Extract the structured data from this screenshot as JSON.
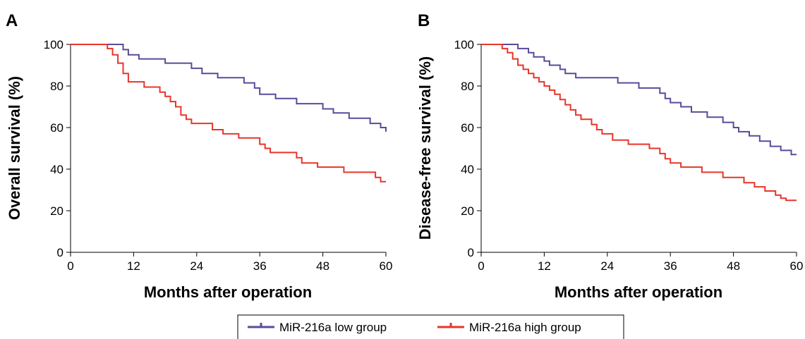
{
  "legend": {
    "entries": [
      {
        "label": "MiR-216a low group",
        "color": "#5b4a9a"
      },
      {
        "label": "MiR-216a high group",
        "color": "#e8352a"
      }
    ]
  },
  "chart_data": [
    {
      "type": "line",
      "step": true,
      "panel_label": "A",
      "xlabel": "Months after operation",
      "ylabel": "Overall survival (%)",
      "xlim": [
        0,
        60
      ],
      "ylim": [
        0,
        100
      ],
      "xticks": [
        "0",
        "12",
        "24",
        "36",
        "48",
        "60"
      ],
      "yticks": [
        "0",
        "20",
        "40",
        "60",
        "80",
        "100"
      ],
      "grid": false,
      "legend": "bottom-center",
      "series": [
        {
          "name": "MiR-216a low group",
          "color": "#5b4a9a",
          "x": [
            0,
            10,
            11,
            13,
            18,
            23,
            25,
            28,
            33,
            35,
            36,
            39,
            43,
            48,
            50,
            53,
            57,
            59,
            60
          ],
          "y": [
            100,
            97.5,
            95,
            93,
            91,
            88.5,
            86,
            84,
            81.5,
            79,
            76,
            74,
            71.5,
            69,
            67,
            64.5,
            62,
            60,
            58
          ]
        },
        {
          "name": "MiR-216a high group",
          "color": "#e8352a",
          "x": [
            0,
            7,
            8,
            9,
            10,
            11,
            14,
            17,
            18,
            19,
            20,
            21,
            22,
            23,
            27,
            29,
            32,
            36,
            37,
            38,
            43,
            44,
            47,
            52,
            58,
            59,
            60
          ],
          "y": [
            100,
            98,
            95,
            91,
            86,
            82,
            79.5,
            77,
            75,
            72.5,
            70,
            66,
            64,
            62,
            59,
            57,
            55,
            52,
            50,
            48,
            45.5,
            43,
            41,
            38.5,
            36,
            34,
            34
          ]
        }
      ]
    },
    {
      "type": "line",
      "step": true,
      "panel_label": "B",
      "xlabel": "Months after operation",
      "ylabel": "Disease-free survival (%)",
      "xlim": [
        0,
        60
      ],
      "ylim": [
        0,
        100
      ],
      "xticks": [
        "0",
        "12",
        "24",
        "36",
        "48",
        "60"
      ],
      "yticks": [
        "0",
        "20",
        "40",
        "60",
        "80",
        "100"
      ],
      "grid": false,
      "legend": "bottom-center",
      "series": [
        {
          "name": "MiR-216a low group",
          "color": "#5b4a9a",
          "x": [
            0,
            7,
            9,
            10,
            12,
            13,
            15,
            16,
            18,
            26,
            30,
            34,
            35,
            36,
            38,
            40,
            43,
            46,
            48,
            49,
            51,
            53,
            55,
            57,
            59,
            60
          ],
          "y": [
            100,
            98,
            96,
            94,
            92,
            90,
            88,
            86,
            84,
            81.5,
            79,
            76.5,
            74,
            72,
            70,
            67.5,
            65,
            62.5,
            60,
            58,
            56,
            53.5,
            51,
            49,
            47,
            47
          ]
        },
        {
          "name": "MiR-216a high group",
          "color": "#e8352a",
          "x": [
            0,
            4,
            5,
            6,
            7,
            8,
            9,
            10,
            11,
            12,
            13,
            14,
            15,
            16,
            17,
            18,
            19,
            21,
            22,
            23,
            25,
            28,
            32,
            34,
            35,
            36,
            38,
            42,
            46,
            50,
            52,
            54,
            56,
            57,
            58,
            60
          ],
          "y": [
            100,
            98,
            96,
            93,
            90,
            88,
            86,
            84,
            82,
            80,
            78,
            76,
            73.5,
            71,
            68.5,
            66,
            64,
            61.5,
            59,
            57,
            54,
            52,
            50,
            47.5,
            45,
            43,
            41,
            38.5,
            36,
            33.5,
            31.5,
            29.5,
            27.5,
            26,
            25,
            25
          ]
        }
      ]
    }
  ]
}
